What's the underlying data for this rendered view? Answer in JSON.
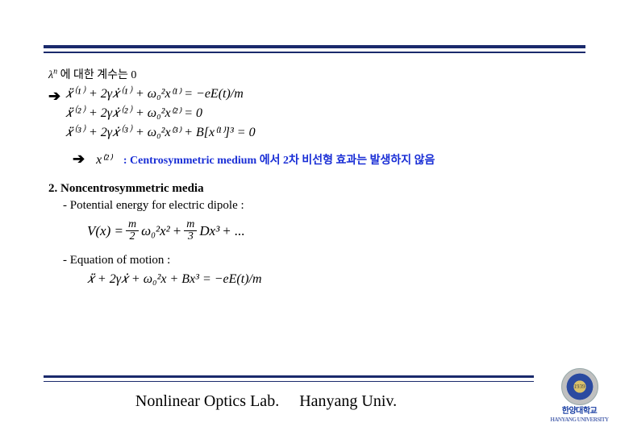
{
  "colors": {
    "rule": "#1a2a6c",
    "highlight": "#1a2fd6",
    "text": "#000000",
    "logo_blue": "#2b4aa0",
    "logo_gold": "#d9c16b",
    "logo_silver": "#c0c0c0"
  },
  "line1_prefix": "λ",
  "line1_supersym": "n",
  "line1_text": " 에 대한 계수는 0",
  "arrow": "➔",
  "eq1": "𝑥̈⁽¹⁾ + 2γ𝑥̇⁽¹⁾ + ω₀²x⁽¹⁾ = −eE(t)/m",
  "eq2": "𝑥̈⁽²⁾ + 2γ𝑥̇⁽²⁾ + ω₀²x⁽²⁾ = 0",
  "eq3": "𝑥̈⁽³⁾ + 2γ𝑥̇⁽³⁾ + ω₀²x⁽³⁾ + B[x⁽¹⁾]³ = 0",
  "result_arrow": "➔",
  "result_x": "x⁽²⁾",
  "result_text": ": Centrosymmetric medium 에서 2차 비선형 효과는 발생하지 않음",
  "sec2_title": "2. Noncentrosymmetric media",
  "sec2_sub1": "- Potential energy for electric dipole :",
  "potential": {
    "lhs": "V(x) =",
    "frac1_num": "m",
    "frac1_den": "2",
    "term1": "ω₀²x²",
    "plus1": "+",
    "frac2_num": "m",
    "frac2_den": "3",
    "term2": "Dx³",
    "tail": "+ ..."
  },
  "sec2_sub2": "- Equation of motion :",
  "motion_eq": "𝑥̈ + 2γ𝑥̇ + ω₀²x + Bx³ = −eE(t)/m",
  "footer_lab": "Nonlinear Optics Lab.",
  "footer_univ": "Hanyang Univ.",
  "logo_year": "1939",
  "logo_kr": "한양대학교",
  "logo_en": "HANYANG UNIVERSITY"
}
